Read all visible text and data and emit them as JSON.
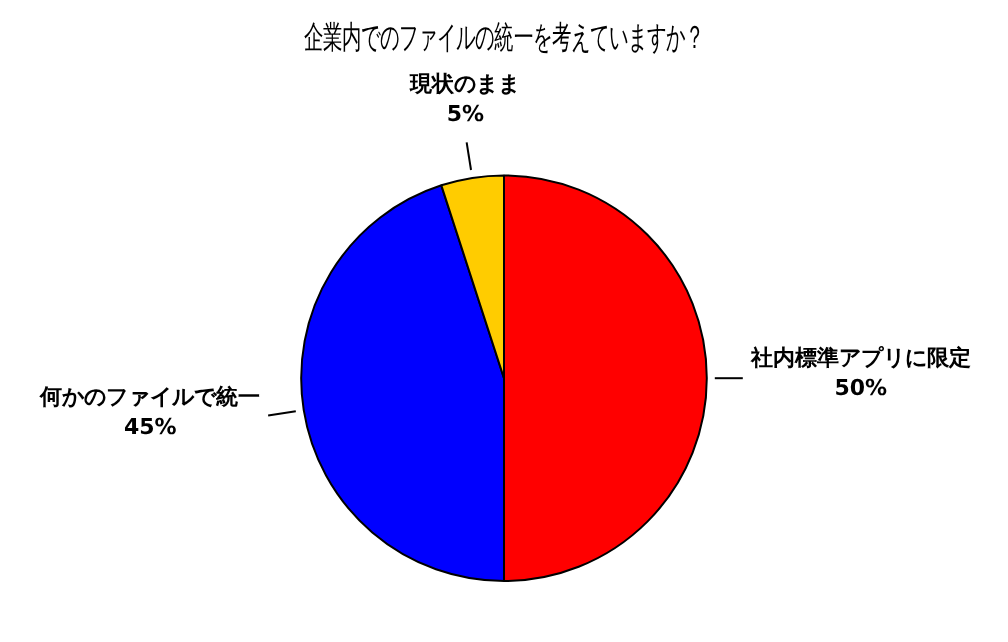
{
  "chart_data": {
    "type": "pie",
    "title": "企業内でのファイルの統一を考えていますか？",
    "categories": [
      "社内標準アプリに限定",
      "何かのファイルで統一",
      "現状のまま"
    ],
    "values": [
      50,
      45,
      5
    ],
    "colors": [
      "#ff0000",
      "#0000ff",
      "#ffcc00"
    ],
    "value_labels": [
      "50%",
      "45%",
      "5%"
    ],
    "legend": false
  }
}
